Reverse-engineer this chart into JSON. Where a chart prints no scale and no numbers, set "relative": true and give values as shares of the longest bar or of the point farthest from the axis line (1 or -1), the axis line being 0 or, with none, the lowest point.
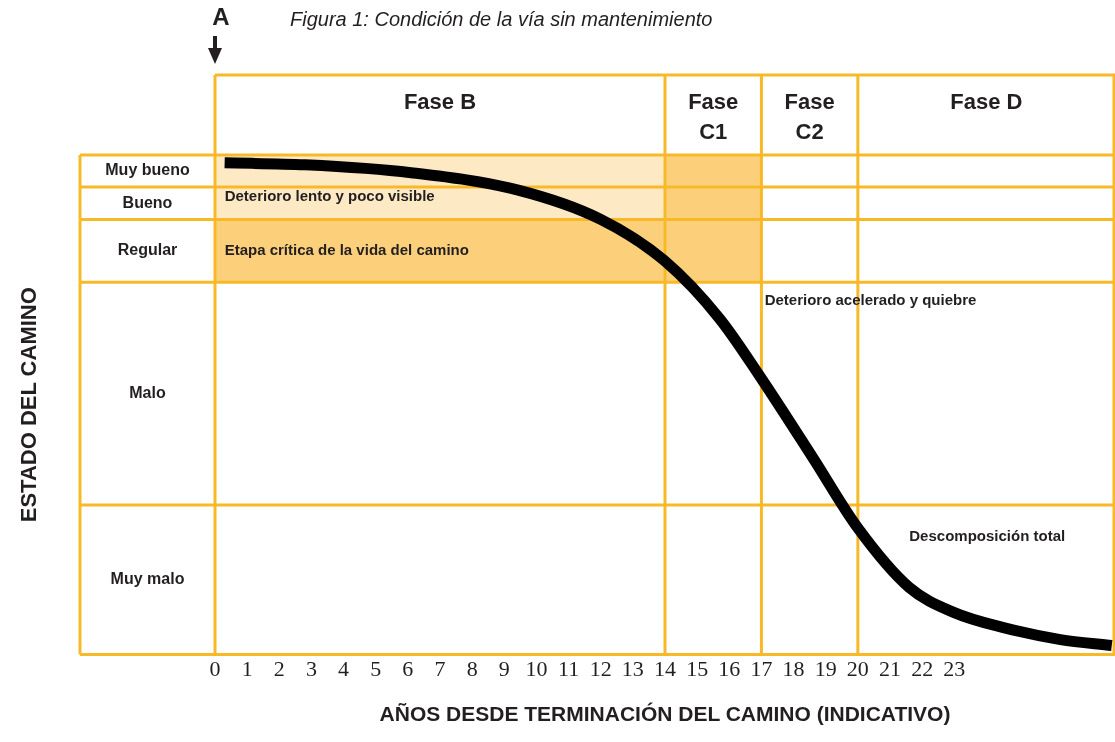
{
  "chart_data": {
    "type": "line",
    "title": "Figura 1: Condición de la vía sin mantenimiento",
    "xlabel": "AÑOS DESDE TERMINACIÓN DEL CAMINO (INDICATIVO)",
    "relative": true,
    "x": [
      0.3,
      2.8,
      6.1,
      9.4,
      12.0,
      14.0,
      15.7,
      17.0,
      18.6,
      20.0,
      21.6,
      23.0,
      24.5,
      26.3,
      27.9
    ],
    "series": [
      {
        "color": "#000000",
        "values": [
          1.0,
          0.996,
          0.98,
          0.945,
          0.885,
          0.8,
          0.683,
          0.561,
          0.4,
          0.257,
          0.136,
          0.085,
          0.055,
          0.03,
          0.018
        ]
      }
    ],
    "xlim": [
      0,
      28
    ],
    "xticks": [
      0,
      1,
      2,
      3,
      4,
      5,
      6,
      7,
      8,
      9,
      10,
      11,
      12,
      13,
      14,
      15,
      16,
      17,
      18,
      19,
      20,
      21,
      22,
      23
    ],
    "ref_lines": [
      {
        "axis": "x",
        "value": 14,
        "color": "#f7b928"
      },
      {
        "axis": "x",
        "value": 17,
        "color": "#f7b928"
      },
      {
        "axis": "x",
        "value": 20,
        "color": "#f7b928"
      },
      {
        "axis": "y",
        "value": 1.016,
        "color": "#f7b928"
      },
      {
        "axis": "y",
        "value": 0.951,
        "color": "#f7b928"
      },
      {
        "axis": "y",
        "value": 0.885,
        "color": "#f7b928"
      },
      {
        "axis": "y",
        "value": 0.757,
        "color": "#f7b928"
      },
      {
        "axis": "y",
        "value": 0.304,
        "color": "#f7b928"
      }
    ],
    "annotations": [
      "A",
      "Fase B",
      "Fase C1",
      "Fase C2",
      "Fase D",
      "Muy bueno",
      "Bueno",
      "Regular",
      "Malo",
      "Muy malo",
      "Deterioro lento y poco visible",
      "Etapa crítica de la vida del camino",
      "Deterioro acelerado y quiebre",
      "Descomposición total",
      "ESTADO DEL CAMINO"
    ],
    "grid": false,
    "legend": false,
    "marker": "none",
    "line_style": "solid"
  }
}
